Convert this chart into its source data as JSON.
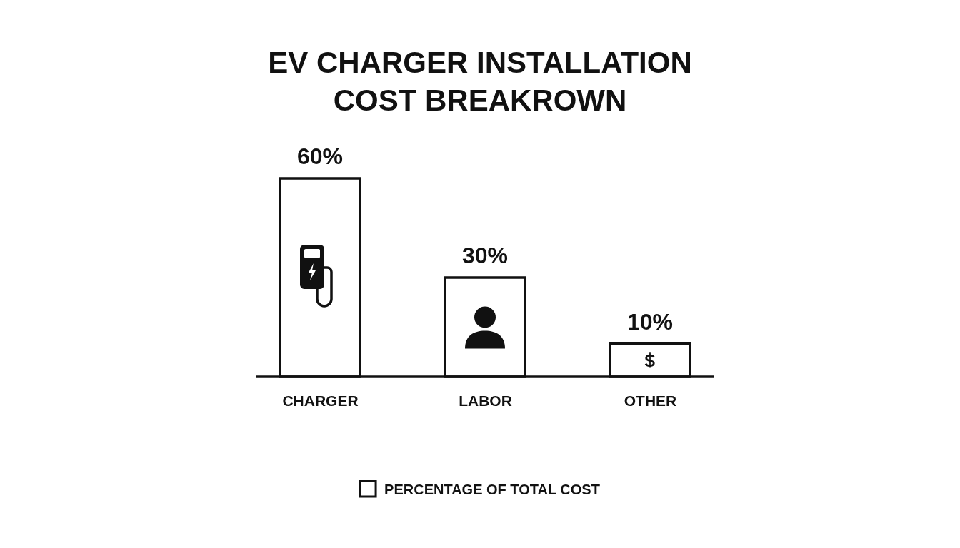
{
  "chart_data": {
    "type": "bar",
    "title": "EV CHARGER INSTALLATION COST BREAKROWN",
    "categories": [
      "CHARGER",
      "LABOR",
      "OTHER"
    ],
    "series": [
      {
        "name": "PERCENTAGE OF TOTAL COST",
        "color": "#ffffff",
        "values": [
          60,
          30,
          10
        ],
        "value_labels": [
          "60%",
          "30%",
          "10%"
        ]
      }
    ],
    "legend": "bottom"
  }
}
